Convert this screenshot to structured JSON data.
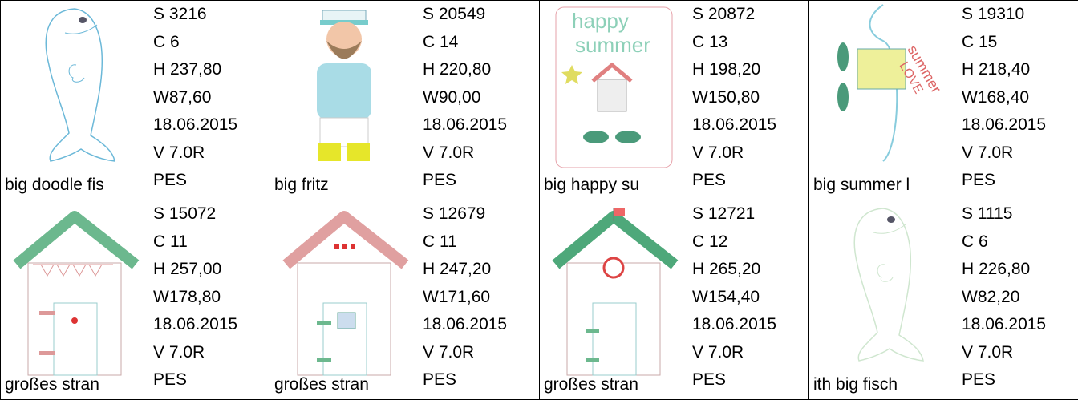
{
  "items": [
    {
      "name": "big doodle fis",
      "lines": [
        "S 3216",
        "C 6",
        "H 237,80",
        "W87,60",
        "18.06.2015",
        "V 7.0R",
        "PES"
      ]
    },
    {
      "name": "big fritz",
      "lines": [
        "S 20549",
        "C 14",
        "H 220,80",
        "W90,00",
        "18.06.2015",
        "V 7.0R",
        "PES"
      ]
    },
    {
      "name": "big happy su",
      "art_text": [
        "happy",
        "summer"
      ],
      "lines": [
        "S 20872",
        "C 13",
        "H 198,20",
        "W150,80",
        "18.06.2015",
        "V 7.0R",
        "PES"
      ]
    },
    {
      "name": "big summer l",
      "art_text": [
        "summer",
        "LOVE"
      ],
      "lines": [
        "S 19310",
        "C 15",
        "H 218,40",
        "W168,40",
        "18.06.2015",
        "V 7.0R",
        "PES"
      ]
    },
    {
      "name": "großes stran",
      "lines": [
        "S 15072",
        "C 11",
        "H 257,00",
        "W178,80",
        "18.06.2015",
        "V 7.0R",
        "PES"
      ]
    },
    {
      "name": "großes stran",
      "lines": [
        "S 12679",
        "C 11",
        "H 247,20",
        "W171,60",
        "18.06.2015",
        "V 7.0R",
        "PES"
      ]
    },
    {
      "name": "großes stran",
      "lines": [
        "S 12721",
        "C 12",
        "H 265,20",
        "W154,40",
        "18.06.2015",
        "V 7.0R",
        "PES"
      ]
    },
    {
      "name": "ith big fisch",
      "lines": [
        "S 1115",
        "C 6",
        "H 226,80",
        "W82,20",
        "18.06.2015",
        "V 7.0R",
        "PES"
      ]
    }
  ]
}
